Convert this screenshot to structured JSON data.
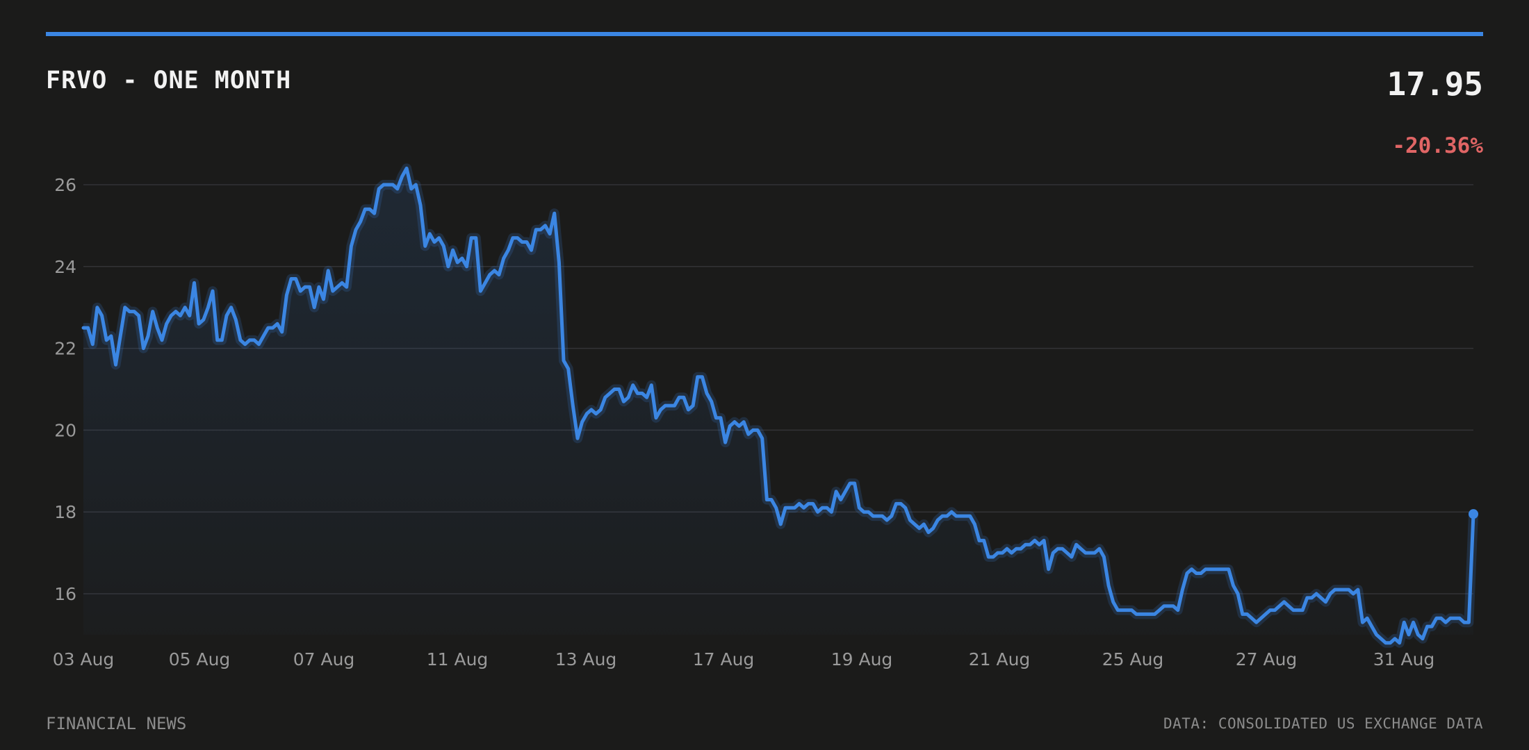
{
  "header": {
    "title": "FRVO - ONE MONTH",
    "price": "17.95",
    "change": "-20.36%"
  },
  "footer": {
    "source_left": "FINANCIAL NEWS",
    "source_right": "DATA: CONSOLIDATED US EXCHANGE DATA"
  },
  "colors": {
    "background": "#1b1b1a",
    "accent": "#3b86e3",
    "negative": "#e06565",
    "grid": "#333336",
    "tick_text": "#9a9a9a"
  },
  "chart_data": {
    "type": "line",
    "title": "FRVO - ONE MONTH",
    "xlabel": "",
    "ylabel": "",
    "ylim": [
      15,
      27
    ],
    "y_ticks": [
      16,
      18,
      20,
      22,
      24,
      26
    ],
    "x_tick_labels": [
      "03 Aug",
      "05 Aug",
      "07 Aug",
      "11 Aug",
      "13 Aug",
      "17 Aug",
      "19 Aug",
      "21 Aug",
      "25 Aug",
      "27 Aug",
      "31 Aug"
    ],
    "grid": true,
    "legend": "none",
    "series": [
      {
        "values": [
          22.5,
          22.5,
          22.1,
          23.0,
          22.8,
          22.2,
          22.3,
          21.6,
          22.3,
          23.0,
          22.9,
          22.9,
          22.8,
          22.0,
          22.3,
          22.9,
          22.5,
          22.2,
          22.6,
          22.8,
          22.9,
          22.8,
          23.0,
          22.8,
          23.6,
          22.6,
          22.7,
          23.0,
          23.4,
          22.2,
          22.2,
          22.8,
          23.0,
          22.7,
          22.2,
          22.1,
          22.2,
          22.2,
          22.1,
          22.3,
          22.5,
          22.5,
          22.6,
          22.4,
          23.3,
          23.7,
          23.7,
          23.4,
          23.5,
          23.5,
          23.0,
          23.5,
          23.2,
          23.9,
          23.4,
          23.5,
          23.6,
          23.5,
          24.5,
          24.9,
          25.1,
          25.4,
          25.4,
          25.3,
          25.9,
          26.0,
          26.0,
          26.0,
          25.9,
          26.2,
          26.4,
          25.9,
          26.0,
          25.5,
          24.5,
          24.8,
          24.6,
          24.7,
          24.5,
          24.0,
          24.4,
          24.1,
          24.2,
          24.0,
          24.7,
          24.7,
          23.4,
          23.6,
          23.8,
          23.9,
          23.8,
          24.2,
          24.4,
          24.7,
          24.7,
          24.6,
          24.6,
          24.4,
          24.9,
          24.9,
          25.0,
          24.8,
          25.3,
          24.1,
          21.7,
          21.5,
          20.6,
          19.8,
          20.2,
          20.4,
          20.5,
          20.4,
          20.5,
          20.8,
          20.9,
          21.0,
          21.0,
          20.7,
          20.8,
          21.1,
          20.9,
          20.9,
          20.8,
          21.1,
          20.3,
          20.5,
          20.6,
          20.6,
          20.6,
          20.8,
          20.8,
          20.5,
          20.6,
          21.3,
          21.3,
          20.9,
          20.7,
          20.3,
          20.3,
          19.7,
          20.1,
          20.2,
          20.1,
          20.2,
          19.9,
          20.0,
          20.0,
          19.8,
          18.3,
          18.3,
          18.1,
          17.7,
          18.1,
          18.1,
          18.1,
          18.2,
          18.1,
          18.2,
          18.2,
          18.0,
          18.1,
          18.1,
          18.0,
          18.5,
          18.3,
          18.5,
          18.7,
          18.7,
          18.1,
          18.0,
          18.0,
          17.9,
          17.9,
          17.9,
          17.8,
          17.9,
          18.2,
          18.2,
          18.1,
          17.8,
          17.7,
          17.6,
          17.7,
          17.5,
          17.6,
          17.8,
          17.9,
          17.9,
          18.0,
          17.9,
          17.9,
          17.9,
          17.9,
          17.7,
          17.3,
          17.3,
          16.9,
          16.9,
          17.0,
          17.0,
          17.1,
          17.0,
          17.1,
          17.1,
          17.2,
          17.2,
          17.3,
          17.2,
          17.3,
          16.6,
          17.0,
          17.1,
          17.1,
          17.0,
          16.9,
          17.2,
          17.1,
          17.0,
          17.0,
          17.0,
          17.1,
          16.9,
          16.2,
          15.8,
          15.6,
          15.6,
          15.6,
          15.6,
          15.5,
          15.5,
          15.5,
          15.5,
          15.5,
          15.6,
          15.7,
          15.7,
          15.7,
          15.6,
          16.1,
          16.5,
          16.6,
          16.5,
          16.5,
          16.6,
          16.6,
          16.6,
          16.6,
          16.6,
          16.6,
          16.2,
          16.0,
          15.5,
          15.5,
          15.4,
          15.3,
          15.4,
          15.5,
          15.6,
          15.6,
          15.7,
          15.8,
          15.7,
          15.6,
          15.6,
          15.6,
          15.9,
          15.9,
          16.0,
          15.9,
          15.8,
          16.0,
          16.1,
          16.1,
          16.1,
          16.1,
          16.0,
          16.1,
          15.3,
          15.4,
          15.2,
          15.0,
          14.9,
          14.8,
          14.8,
          14.9,
          14.8,
          15.3,
          15.0,
          15.3,
          15.0,
          14.9,
          15.2,
          15.2,
          15.4,
          15.4,
          15.3,
          15.4,
          15.4,
          15.4,
          15.3,
          15.3,
          17.95
        ]
      }
    ]
  }
}
